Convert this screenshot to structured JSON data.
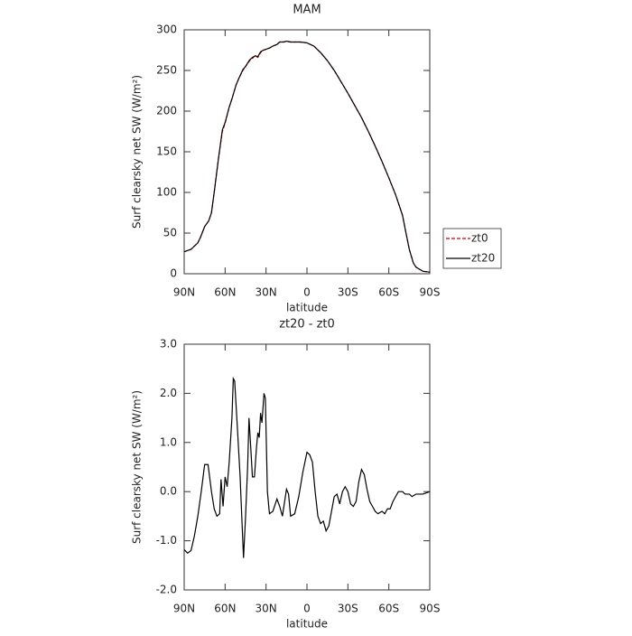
{
  "chart_data": [
    {
      "type": "line",
      "title": "MAM",
      "xlabel": "latitude",
      "ylabel": "Surf clearsky net SW (W/m²)",
      "x": [
        90,
        85,
        80,
        78,
        75,
        72,
        70,
        68,
        65,
        62,
        60,
        57,
        55,
        52,
        50,
        47,
        45,
        42,
        40,
        38,
        36,
        34,
        32,
        30,
        27,
        25,
        22,
        20,
        17,
        15,
        12,
        10,
        5,
        0,
        -5,
        -10,
        -15,
        -20,
        -25,
        -30,
        -35,
        -40,
        -45,
        -50,
        -55,
        -60,
        -65,
        -70,
        -72,
        -75,
        -78,
        -80,
        -83,
        -85,
        -90
      ],
      "series": [
        {
          "name": "zt0",
          "color": "#cc0000",
          "dash": "dashed",
          "values": [
            27,
            30,
            38,
            45,
            58,
            65,
            75,
            100,
            140,
            175,
            185,
            205,
            215,
            232,
            240,
            250,
            255,
            262,
            265,
            268,
            266,
            272,
            275,
            276,
            278,
            280,
            282,
            285,
            285,
            286,
            285,
            285,
            285,
            284,
            280,
            272,
            262,
            250,
            236,
            222,
            207,
            192,
            175,
            157,
            138,
            118,
            97,
            72,
            55,
            30,
            13,
            8,
            5,
            3,
            2
          ]
        },
        {
          "name": "zt20",
          "color": "#000000",
          "dash": "solid",
          "values": [
            27,
            30,
            38,
            45,
            58,
            65,
            75,
            100,
            140,
            177,
            186,
            205,
            215,
            232,
            240,
            251,
            255,
            263,
            266,
            268,
            267,
            273,
            275,
            276,
            278,
            280,
            282,
            285,
            285,
            286,
            285,
            285,
            285,
            284,
            280,
            272,
            262,
            250,
            236,
            222,
            207,
            192,
            175,
            157,
            138,
            118,
            97,
            72,
            55,
            30,
            13,
            8,
            5,
            3,
            2
          ]
        }
      ],
      "xlim": [
        90,
        -90
      ],
      "xticks": [
        {
          "value": 90,
          "label": "90N"
        },
        {
          "value": 60,
          "label": "60N"
        },
        {
          "value": 30,
          "label": "30N"
        },
        0,
        {
          "value": -30,
          "label": "30S"
        },
        {
          "value": -60,
          "label": "60S"
        },
        {
          "value": -90,
          "label": "90S"
        }
      ],
      "ylim": [
        0,
        300
      ],
      "yticks": [
        0,
        50,
        100,
        150,
        200,
        250,
        300
      ],
      "legend": "right"
    },
    {
      "type": "line",
      "title": "zt20 - zt0",
      "xlabel": "latitude",
      "ylabel": "Surf clearsky net SW (W/m²)",
      "x": [
        90,
        87.5,
        85,
        82.5,
        80,
        77.5,
        75,
        72.5,
        70,
        68,
        66,
        64,
        63,
        61.5,
        60,
        58.5,
        57,
        55,
        54,
        53,
        51,
        49,
        47.5,
        46.5,
        45,
        43.5,
        42.5,
        41,
        40,
        38.5,
        37,
        36,
        35,
        34,
        33,
        31.5,
        30.5,
        29,
        27.5,
        25,
        22,
        20,
        18,
        15,
        13.5,
        12,
        9,
        6,
        3,
        0,
        -2,
        -4,
        -6,
        -8,
        -10,
        -12,
        -14,
        -16,
        -18,
        -20,
        -22,
        -24,
        -26,
        -28,
        -30,
        -32,
        -34,
        -36,
        -38,
        -40,
        -42,
        -44,
        -46,
        -48,
        -50,
        -52,
        -55,
        -57,
        -59,
        -61,
        -63,
        -65,
        -67,
        -70,
        -72,
        -75,
        -77,
        -80,
        -85,
        -90
      ],
      "series": [
        {
          "name": "zt20 - zt0",
          "color": "#000000",
          "dash": "solid",
          "values": [
            -1.18,
            -1.25,
            -1.2,
            -0.9,
            -0.5,
            0.0,
            0.55,
            0.55,
            0.0,
            -0.35,
            -0.5,
            -0.45,
            0.25,
            -0.3,
            0.3,
            0.1,
            0.6,
            1.5,
            2.3,
            2.25,
            1.3,
            0.3,
            -0.7,
            -1.35,
            -0.5,
            0.5,
            1.5,
            0.8,
            0.3,
            0.3,
            0.9,
            1.2,
            1.1,
            1.6,
            1.4,
            2.0,
            1.9,
            0.0,
            -0.45,
            -0.4,
            -0.15,
            -0.3,
            -0.5,
            0.05,
            -0.05,
            -0.5,
            -0.45,
            -0.1,
            0.4,
            0.8,
            0.75,
            0.6,
            0.0,
            -0.5,
            -0.65,
            -0.6,
            -0.8,
            -0.7,
            -0.4,
            -0.1,
            -0.05,
            -0.25,
            0.0,
            0.1,
            0.0,
            -0.25,
            -0.3,
            -0.2,
            0.2,
            0.45,
            0.35,
            0.05,
            -0.2,
            -0.3,
            -0.4,
            -0.45,
            -0.4,
            -0.45,
            -0.35,
            -0.35,
            -0.2,
            -0.1,
            0.0,
            0.0,
            -0.05,
            -0.05,
            -0.1,
            -0.05,
            -0.05,
            0.0
          ]
        }
      ],
      "xlim": [
        90,
        -90
      ],
      "xticks": [
        {
          "value": 90,
          "label": "90N"
        },
        {
          "value": 60,
          "label": "60N"
        },
        {
          "value": 30,
          "label": "30N"
        },
        0,
        {
          "value": -30,
          "label": "30S"
        },
        {
          "value": -60,
          "label": "60S"
        },
        {
          "value": -90,
          "label": "90S"
        }
      ],
      "ylim": [
        -2,
        3
      ],
      "yticks": [
        {
          "value": -2,
          "label": "-2.0"
        },
        {
          "value": -1,
          "label": "-1.0"
        },
        {
          "value": 0,
          "label": "0.0"
        },
        {
          "value": 1,
          "label": "1.0"
        },
        {
          "value": 2,
          "label": "2.0"
        },
        {
          "value": 3,
          "label": "3.0"
        }
      ]
    }
  ]
}
